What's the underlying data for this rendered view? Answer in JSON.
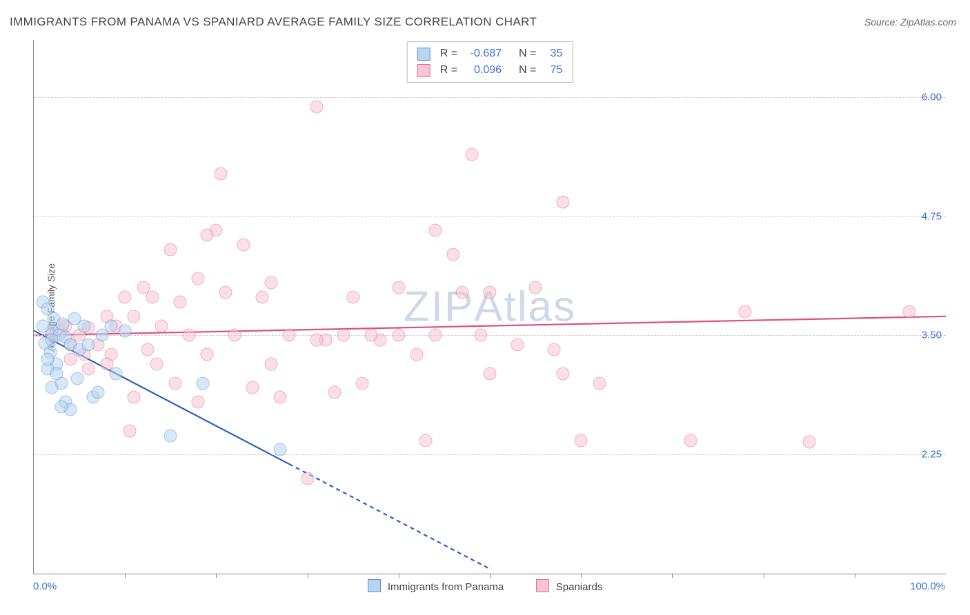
{
  "title": "IMMIGRANTS FROM PANAMA VS SPANIARD AVERAGE FAMILY SIZE CORRELATION CHART",
  "source_label": "Source: ",
  "source_name": "ZipAtlas.com",
  "ylabel": "Average Family Size",
  "watermark_a": "ZIP",
  "watermark_b": "Atlas",
  "chart": {
    "type": "scatter",
    "background_color": "#ffffff",
    "grid_color": "#cccccc",
    "axis_color": "#888888",
    "xlim": [
      0,
      100
    ],
    "ylim": [
      1.0,
      6.6
    ],
    "y_ticks": [
      2.25,
      3.5,
      4.75,
      6.0
    ],
    "x_tick_label_min": "0.0%",
    "x_tick_label_max": "100.0%",
    "x_tick_marks": [
      10,
      20,
      30,
      40,
      50,
      60,
      70,
      80,
      90
    ],
    "tick_color": "#3b6fd6",
    "series": {
      "panama": {
        "label": "Immigrants from Panama",
        "fill": "#b8d4f0",
        "stroke": "#5a94d6",
        "line_color": "#2b5fc1",
        "R_label": "R = ",
        "R_value": "-0.687",
        "N_label": "N = ",
        "N_value": "35",
        "trend": {
          "x1": 0,
          "y1": 3.55,
          "x2_solid": 28,
          "y2_solid": 2.15,
          "x2_dash": 50,
          "y2_dash": 1.05
        },
        "marker_size": 17,
        "points": [
          [
            1.0,
            3.85
          ],
          [
            1.5,
            3.78
          ],
          [
            2.2,
            3.68
          ],
          [
            2.0,
            3.55
          ],
          [
            2.8,
            3.5
          ],
          [
            1.2,
            3.42
          ],
          [
            1.8,
            3.32
          ],
          [
            3.2,
            3.62
          ],
          [
            3.5,
            3.48
          ],
          [
            4.0,
            3.4
          ],
          [
            2.5,
            3.2
          ],
          [
            1.5,
            3.15
          ],
          [
            4.5,
            3.68
          ],
          [
            5.0,
            3.35
          ],
          [
            3.0,
            3.0
          ],
          [
            2.0,
            2.95
          ],
          [
            5.5,
            3.6
          ],
          [
            6.0,
            3.4
          ],
          [
            4.8,
            3.05
          ],
          [
            3.5,
            2.8
          ],
          [
            7.5,
            3.5
          ],
          [
            8.5,
            3.6
          ],
          [
            6.5,
            2.85
          ],
          [
            4.0,
            2.72
          ],
          [
            3.0,
            2.75
          ],
          [
            10.0,
            3.55
          ],
          [
            9.0,
            3.1
          ],
          [
            7.0,
            2.9
          ],
          [
            15.0,
            2.45
          ],
          [
            18.5,
            3.0
          ],
          [
            27.0,
            2.3
          ],
          [
            1.0,
            3.6
          ],
          [
            2.0,
            3.45
          ],
          [
            1.5,
            3.25
          ],
          [
            2.5,
            3.1
          ]
        ]
      },
      "spaniards": {
        "label": "Spaniards",
        "fill": "#f7c6d2",
        "stroke": "#e66f94",
        "line_color": "#e04d84",
        "R_label": "R = ",
        "R_value": "0.096",
        "N_label": "N = ",
        "N_value": "75",
        "trend": {
          "x1": 0,
          "y1": 3.5,
          "x2": 100,
          "y2": 3.7
        },
        "marker_size": 17,
        "points": [
          [
            2.0,
            3.5
          ],
          [
            3.0,
            3.55
          ],
          [
            3.5,
            3.6
          ],
          [
            4.0,
            3.4
          ],
          [
            5.0,
            3.5
          ],
          [
            5.5,
            3.3
          ],
          [
            6.0,
            3.58
          ],
          [
            7.0,
            3.4
          ],
          [
            8.0,
            3.7
          ],
          [
            8.5,
            3.3
          ],
          [
            9.0,
            3.6
          ],
          [
            10.0,
            3.9
          ],
          [
            10.5,
            2.5
          ],
          [
            11.0,
            3.7
          ],
          [
            12.0,
            4.0
          ],
          [
            12.5,
            3.35
          ],
          [
            13.0,
            3.9
          ],
          [
            13.5,
            3.2
          ],
          [
            14.0,
            3.6
          ],
          [
            15.0,
            4.4
          ],
          [
            15.5,
            3.0
          ],
          [
            16.0,
            3.85
          ],
          [
            17.0,
            3.5
          ],
          [
            18.0,
            4.1
          ],
          [
            19.0,
            3.3
          ],
          [
            20.0,
            4.6
          ],
          [
            20.5,
            5.2
          ],
          [
            21.0,
            3.95
          ],
          [
            22.0,
            3.5
          ],
          [
            23.0,
            4.45
          ],
          [
            24.0,
            2.95
          ],
          [
            25.0,
            3.9
          ],
          [
            26.0,
            3.2
          ],
          [
            27.0,
            2.85
          ],
          [
            28.0,
            3.5
          ],
          [
            30.0,
            2.0
          ],
          [
            31.0,
            5.9
          ],
          [
            32.0,
            3.45
          ],
          [
            33.0,
            2.9
          ],
          [
            34.0,
            3.5
          ],
          [
            35.0,
            3.9
          ],
          [
            36.0,
            3.0
          ],
          [
            38.0,
            3.45
          ],
          [
            40.0,
            4.0
          ],
          [
            42.0,
            3.3
          ],
          [
            43.0,
            2.4
          ],
          [
            44.0,
            3.5
          ],
          [
            46.0,
            4.35
          ],
          [
            47.0,
            3.95
          ],
          [
            48.0,
            5.4
          ],
          [
            49.0,
            3.5
          ],
          [
            50.0,
            3.1
          ],
          [
            55.0,
            4.0
          ],
          [
            57.0,
            3.35
          ],
          [
            58.0,
            3.1
          ],
          [
            60.0,
            2.4
          ],
          [
            62.0,
            3.0
          ],
          [
            72.0,
            2.4
          ],
          [
            78.0,
            3.75
          ],
          [
            96.0,
            3.75
          ],
          [
            40.0,
            3.5
          ],
          [
            44.0,
            4.6
          ],
          [
            50.0,
            3.95
          ],
          [
            8.0,
            3.2
          ],
          [
            11.0,
            2.85
          ],
          [
            18.0,
            2.8
          ],
          [
            58.0,
            4.9
          ],
          [
            85.0,
            2.38
          ],
          [
            19.0,
            4.55
          ],
          [
            26.0,
            4.05
          ],
          [
            6.0,
            3.15
          ],
          [
            4.0,
            3.25
          ],
          [
            53.0,
            3.4
          ],
          [
            37.0,
            3.5
          ],
          [
            31.0,
            3.45
          ]
        ]
      }
    }
  }
}
